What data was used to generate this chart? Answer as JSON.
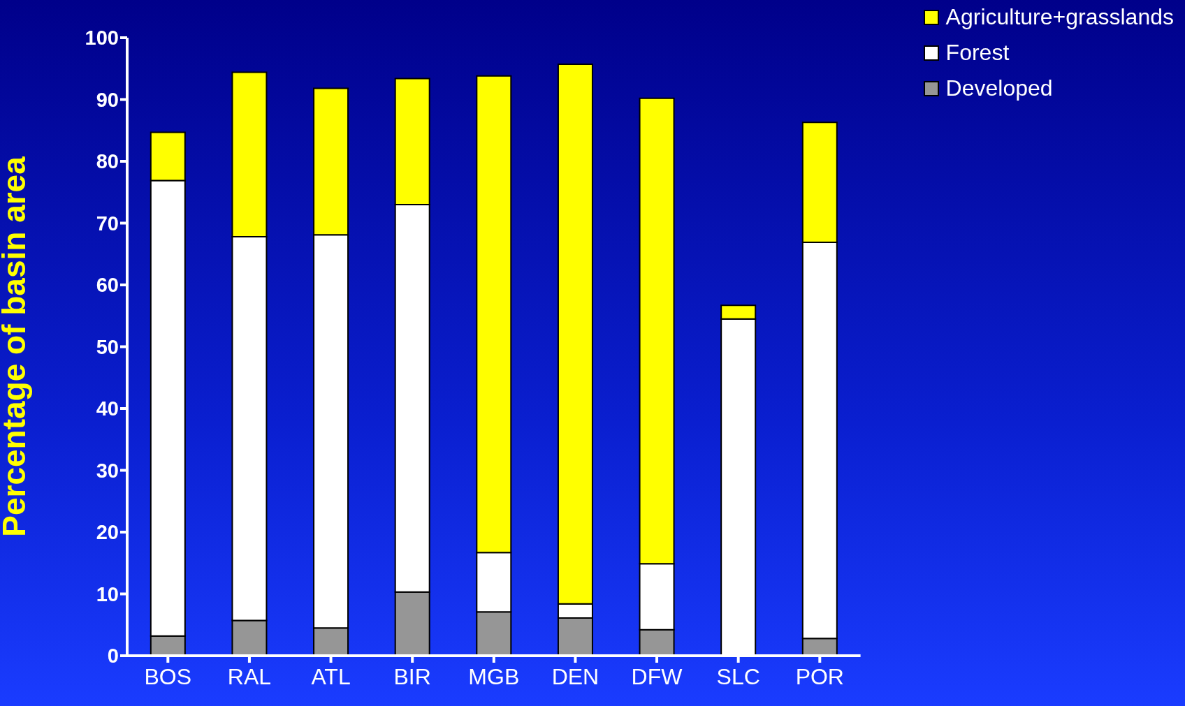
{
  "chart_data": {
    "type": "bar",
    "stacked": true,
    "ylabel": "Percentage of basin area",
    "categories": [
      "BOS",
      "RAL",
      "ATL",
      "BIR",
      "MGB",
      "DEN",
      "DFW",
      "SLC",
      "POR"
    ],
    "ylim": [
      0,
      100
    ],
    "yticks": [
      0,
      10,
      20,
      30,
      40,
      50,
      60,
      70,
      80,
      90,
      100
    ],
    "legend": "top right",
    "series": [
      {
        "name": "Developed",
        "color": "#969696",
        "values": [
          3.2,
          5.7,
          4.5,
          10.3,
          7.1,
          6.1,
          4.2,
          0,
          2.8
        ]
      },
      {
        "name": "Forest",
        "color": "#ffffff",
        "values": [
          73.7,
          62.1,
          63.6,
          62.7,
          9.6,
          2.3,
          10.7,
          54.5,
          64.1
        ]
      },
      {
        "name": "Agriculture+grasslands",
        "color": "#ffff00",
        "values": [
          7.8,
          26.6,
          23.7,
          20.4,
          77.1,
          87.3,
          75.3,
          2.2,
          19.4
        ]
      }
    ]
  }
}
